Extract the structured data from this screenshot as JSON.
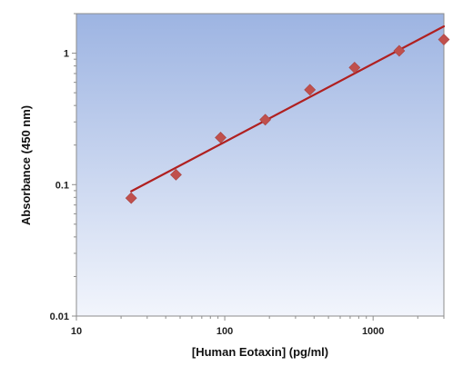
{
  "chart_data": {
    "type": "scatter",
    "xlabel": "[Human Eotaxin] (pg/ml)",
    "ylabel": "Absorbance (450 nm)",
    "x_scale": "log",
    "y_scale": "log",
    "xlim": [
      10,
      3000
    ],
    "ylim": [
      0.01,
      2
    ],
    "x_ticks": [
      10,
      100,
      1000
    ],
    "x_tick_labels": [
      "10",
      "100",
      "1000"
    ],
    "y_ticks": [
      0.01,
      0.1,
      1
    ],
    "y_tick_labels": [
      "0.01",
      "0.1",
      "1"
    ],
    "grid": false,
    "legend": "none",
    "background_gradient": [
      "#9db4e2",
      "#f2f5fc"
    ],
    "series": [
      {
        "marker": "diamond",
        "color": "#c0504d",
        "x": [
          23.4,
          46.9,
          93.8,
          187.5,
          375,
          750,
          1500,
          3000
        ],
        "y": [
          0.079,
          0.119,
          0.228,
          0.312,
          0.527,
          0.777,
          1.042,
          1.27
        ]
      }
    ],
    "fit_line": {
      "color": "#b02020",
      "x": [
        23.4,
        3000
      ],
      "y": [
        0.089,
        1.6
      ]
    }
  }
}
